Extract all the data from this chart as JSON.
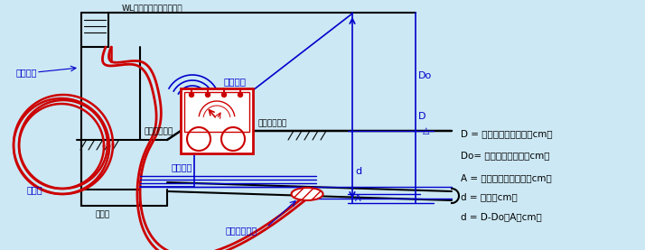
{
  "bg_color": "#cce8f4",
  "black": "#000000",
  "blue": "#0000cc",
  "blue2": "#3366cc",
  "red": "#cc0000",
  "legend_texts": [
    "D = 圧力を深さに換算（cm）",
    "Do= 地上測量で得る（cm）",
    "A = 管路構造で決まる（cm）",
    "d = 土被（cm）",
    "d = D-Do－A（cm）"
  ],
  "wl_label": "WL（ウォーターレベル）",
  "label_水タンク": "水タンク",
  "label_測定計器": "測定計器",
  "label_GL_right": "ＧＬ（地上）",
  "label_GL_left": "ＧＬ（地上）",
  "label_ケーブル": "ケーブル",
  "label_ホース": "ホース",
  "label_人孔": "人　孔",
  "label_水圧プローブ": "水圧プローブ",
  "label_D": "D",
  "label_Do": "Do",
  "label_d": "d",
  "label_A": "A"
}
